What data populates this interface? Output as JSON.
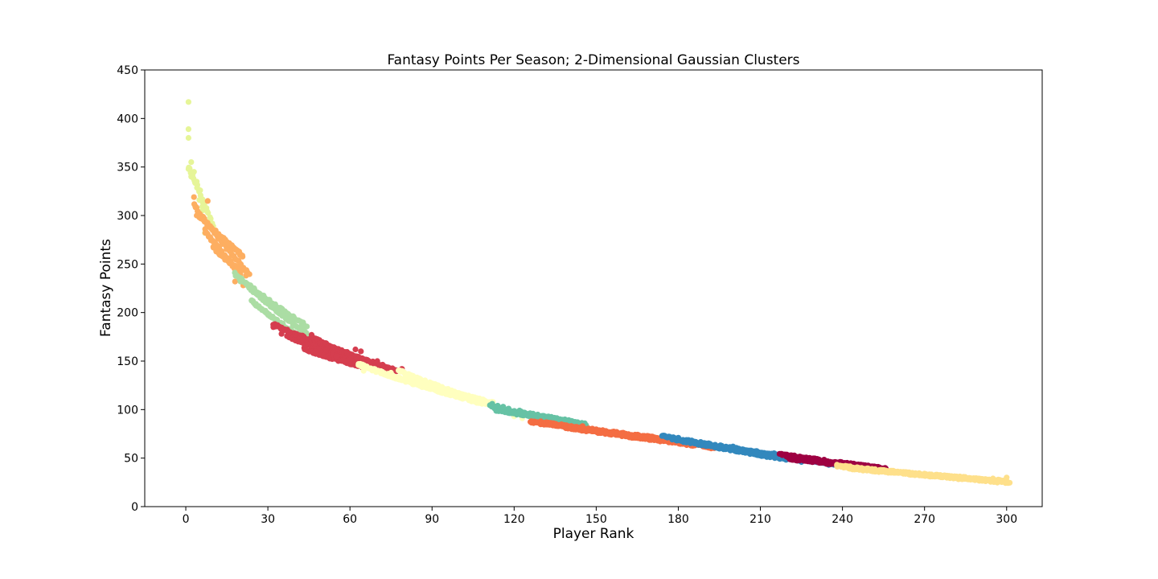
{
  "chart_data": {
    "type": "scatter",
    "title": "Fantasy Points Per Season; 2-Dimensional Gaussian Clusters",
    "xlabel": "Player Rank",
    "ylabel": "Fantasy Points",
    "xlim": [
      -15,
      313
    ],
    "ylim": [
      0,
      450
    ],
    "xticks": [
      0,
      30,
      60,
      90,
      120,
      150,
      180,
      210,
      240,
      270,
      300
    ],
    "yticks": [
      0,
      50,
      100,
      150,
      200,
      250,
      300,
      350,
      400,
      450
    ],
    "grid": false,
    "series": [
      {
        "color": "#e6f598",
        "segments": [
          [
            1,
            5,
            350,
            325,
            1
          ],
          [
            5,
            10,
            325,
            290,
            0.7
          ]
        ],
        "extra_points": [
          [
            1,
            417
          ],
          [
            1,
            389
          ],
          [
            1,
            380
          ],
          [
            2,
            355
          ],
          [
            1,
            348
          ],
          [
            3,
            345
          ],
          [
            2,
            340
          ],
          [
            4,
            335
          ],
          [
            5,
            316
          ],
          [
            6,
            309
          ],
          [
            7,
            282
          ],
          [
            6,
            305
          ]
        ]
      },
      {
        "color": "#fdae61",
        "segments": [
          [
            3,
            23,
            312,
            240,
            1
          ],
          [
            5,
            21,
            300,
            258,
            1
          ],
          [
            7,
            20,
            285,
            240,
            1
          ],
          [
            10,
            19,
            268,
            245,
            1
          ]
        ],
        "extra_points": [
          [
            3,
            319
          ],
          [
            4,
            300
          ],
          [
            5,
            298
          ],
          [
            8,
            315
          ],
          [
            21,
            228
          ],
          [
            22,
            238
          ],
          [
            18,
            232
          ]
        ]
      },
      {
        "color": "#abdda4",
        "segments": [
          [
            18,
            44,
            240,
            186,
            1
          ],
          [
            22,
            45,
            230,
            176,
            1
          ],
          [
            24,
            46,
            213,
            167,
            1
          ]
        ],
        "extra_points": [
          [
            20,
            232
          ],
          [
            25,
            225
          ],
          [
            30,
            210
          ],
          [
            43,
            181
          ],
          [
            44,
            178
          ]
        ]
      },
      {
        "color": "#d53e4f",
        "segments": [
          [
            32,
            77,
            188,
            140,
            1
          ],
          [
            37,
            70,
            176,
            142,
            1
          ],
          [
            43,
            66,
            163,
            143,
            1
          ],
          [
            46,
            67,
            175,
            149,
            1
          ]
        ],
        "extra_points": [
          [
            32,
            185
          ],
          [
            35,
            178
          ],
          [
            46,
            177
          ],
          [
            62,
            162
          ],
          [
            64,
            160
          ],
          [
            70,
            150
          ],
          [
            79,
            142
          ],
          [
            60,
            151
          ],
          [
            55,
            155
          ]
        ]
      },
      {
        "color": "#ffffbf",
        "segments": [
          [
            63,
            112,
            147,
            104,
            1
          ],
          [
            72,
            109,
            138,
            106,
            1
          ],
          [
            78,
            103,
            140,
            113,
            1
          ],
          [
            80,
            112,
            132,
            107,
            1
          ]
        ],
        "extra_points": [
          [
            64,
            145
          ],
          [
            65,
            140
          ],
          [
            75,
            138
          ],
          [
            83,
            126
          ],
          [
            123,
            91
          ],
          [
            120,
            93
          ]
        ]
      },
      {
        "color": "#66c2a5",
        "segments": [
          [
            111,
            146,
            104,
            85,
            1
          ],
          [
            113,
            144,
            100,
            86,
            1
          ]
        ],
        "extra_points": [
          [
            112,
            106
          ],
          [
            114,
            104
          ],
          [
            116,
            103
          ],
          [
            118,
            101
          ],
          [
            120,
            98
          ],
          [
            122,
            99
          ]
        ]
      },
      {
        "color": "#f46d43",
        "segments": [
          [
            126,
            193,
            88,
            61,
            1
          ],
          [
            130,
            185,
            87,
            66,
            1
          ],
          [
            140,
            175,
            82,
            69,
            1
          ]
        ],
        "extra_points": [
          [
            145,
            83
          ],
          [
            160,
            75
          ],
          [
            170,
            71
          ],
          [
            187,
            65
          ],
          [
            192,
            60
          ]
        ]
      },
      {
        "color": "#3288bd",
        "segments": [
          [
            174,
            242,
            73,
            42,
            1
          ],
          [
            178,
            230,
            70,
            46,
            1
          ],
          [
            190,
            220,
            64,
            49,
            1
          ]
        ],
        "extra_points": [
          [
            175,
            73
          ],
          [
            180,
            71
          ],
          [
            200,
            62
          ],
          [
            215,
            55
          ],
          [
            225,
            46
          ],
          [
            235,
            43
          ]
        ]
      },
      {
        "color": "#9e0142",
        "segments": [
          [
            217,
            256,
            54,
            39,
            1
          ],
          [
            220,
            252,
            50,
            40,
            1
          ]
        ],
        "extra_points": [
          [
            218,
            53
          ],
          [
            225,
            51
          ],
          [
            240,
            45
          ],
          [
            248,
            42
          ],
          [
            253,
            41
          ]
        ]
      },
      {
        "color": "#fee08b",
        "segments": [
          [
            238,
            301,
            42,
            25,
            1
          ],
          [
            242,
            300,
            40,
            26,
            1
          ]
        ],
        "extra_points": [
          [
            238,
            42
          ],
          [
            245,
            40
          ],
          [
            255,
            37
          ],
          [
            270,
            34
          ],
          [
            285,
            30
          ],
          [
            295,
            29
          ],
          [
            300,
            25
          ],
          [
            300,
            30
          ]
        ]
      }
    ]
  }
}
